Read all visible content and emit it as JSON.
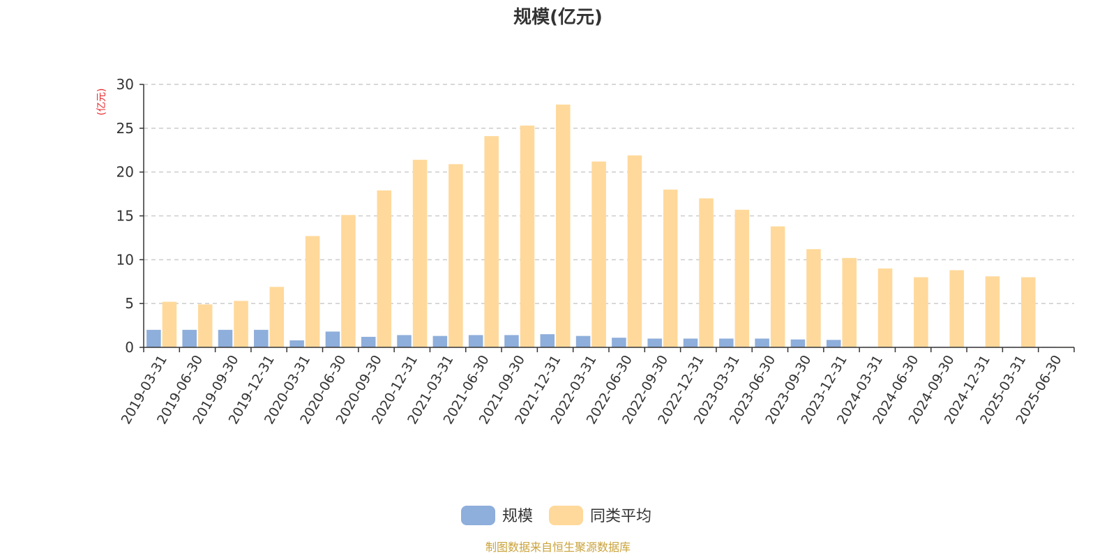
{
  "chart_data": {
    "type": "bar",
    "title": "规模(亿元)",
    "ylabel": "(亿元)",
    "xlabel": "",
    "ylim": [
      0,
      30
    ],
    "yticks": [
      0,
      5,
      10,
      15,
      20,
      25,
      30
    ],
    "grid": true,
    "legend_position": "bottom",
    "categories": [
      "2019-03-31",
      "2019-06-30",
      "2019-09-30",
      "2019-12-31",
      "2020-03-31",
      "2020-06-30",
      "2020-09-30",
      "2020-12-31",
      "2021-03-31",
      "2021-06-30",
      "2021-09-30",
      "2021-12-31",
      "2022-03-31",
      "2022-06-30",
      "2022-09-30",
      "2022-12-31",
      "2023-03-31",
      "2023-06-30",
      "2023-09-30",
      "2023-12-31",
      "2024-03-31",
      "2024-06-30",
      "2024-09-30",
      "2024-12-31",
      "2025-03-31",
      "2025-06-30"
    ],
    "series": [
      {
        "name": "规模",
        "color": "#8eaedb",
        "values": [
          2.0,
          2.0,
          2.0,
          2.0,
          0.8,
          1.8,
          1.2,
          1.4,
          1.3,
          1.4,
          1.4,
          1.5,
          1.3,
          1.1,
          1.0,
          1.0,
          1.0,
          1.0,
          0.9,
          0.85,
          0.05,
          0.05,
          0.05,
          0.05,
          0.05,
          0.05
        ]
      },
      {
        "name": "同类平均",
        "color": "#ffd99b",
        "values": [
          5.2,
          4.9,
          5.3,
          6.9,
          12.7,
          15.1,
          17.9,
          21.4,
          20.9,
          24.1,
          25.3,
          27.7,
          21.2,
          21.9,
          18.0,
          17.0,
          15.7,
          13.8,
          11.2,
          10.2,
          9.0,
          8.0,
          8.8,
          8.1,
          8.0,
          0.05
        ]
      }
    ]
  },
  "footer": {
    "source": "制图数据来自恒生聚源数据库"
  }
}
